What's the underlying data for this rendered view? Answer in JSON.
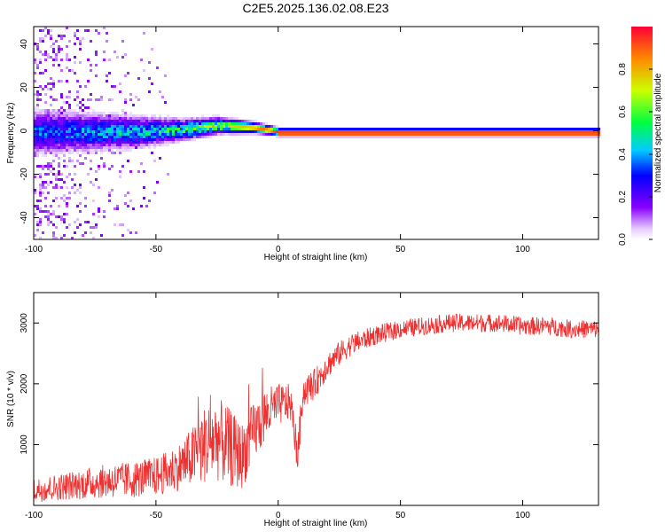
{
  "title": "C2E5.2025.136.02.08.E23",
  "chart_data": [
    {
      "type": "heatmap",
      "xlabel": "Height of straight line (km)",
      "ylabel": "Frequency (Hz)",
      "xlim": [
        -100,
        131
      ],
      "ylim": [
        -50,
        48
      ],
      "xticks": [
        "-100",
        "-50",
        "0",
        "50",
        "100"
      ],
      "xtick_values": [
        -100,
        -50,
        0,
        50,
        100
      ],
      "yticks": [
        "-40",
        "-20",
        "0",
        "20",
        "40"
      ],
      "ytick_values": [
        -40,
        -20,
        0,
        20,
        40
      ],
      "colorbar": {
        "label": "Normalized spectral amplitude",
        "range": [
          0,
          1
        ],
        "ticks": [
          "0.0",
          "0.2",
          "0.4",
          "0.6",
          "0.8"
        ],
        "tick_values": [
          0,
          0.2,
          0.4,
          0.6,
          0.8
        ]
      },
      "band": [
        {
          "x": -95,
          "center": 0,
          "halfwidth": 8,
          "amp": 0.35
        },
        {
          "x": -80,
          "center": 0,
          "halfwidth": 7,
          "amp": 0.4
        },
        {
          "x": -60,
          "center": 0,
          "halfwidth": 6,
          "amp": 0.45
        },
        {
          "x": -40,
          "center": 1,
          "halfwidth": 4,
          "amp": 0.55
        },
        {
          "x": -25,
          "center": 3,
          "halfwidth": 3,
          "amp": 0.7
        },
        {
          "x": -10,
          "center": 2,
          "halfwidth": 2,
          "amp": 0.85
        },
        {
          "x": 0,
          "center": 0,
          "halfwidth": 1.5,
          "amp": 0.95
        },
        {
          "x": 50,
          "center": 0,
          "halfwidth": 1.5,
          "amp": 0.95
        },
        {
          "x": 100,
          "center": 0,
          "halfwidth": 1.5,
          "amp": 0.95
        },
        {
          "x": 131,
          "center": 0,
          "halfwidth": 1.5,
          "amp": 0.95
        }
      ]
    },
    {
      "type": "line",
      "xlabel": "Height of straight line (km)",
      "ylabel": "SNR (10 * v/v)",
      "xlim": [
        -100,
        131
      ],
      "ylim": [
        0,
        3500
      ],
      "xticks": [
        "-100",
        "-50",
        "0",
        "50",
        "100"
      ],
      "xtick_values": [
        -100,
        -50,
        0,
        50,
        100
      ],
      "yticks": [
        "1000",
        "2000",
        "3000"
      ],
      "ytick_values": [
        1000,
        2000,
        3000
      ],
      "series_color": "#ee3030",
      "x": [
        -100,
        -90,
        -80,
        -70,
        -60,
        -50,
        -45,
        -40,
        -35,
        -30,
        -25,
        -20,
        -15,
        -10,
        -5,
        0,
        5,
        8,
        10,
        15,
        20,
        25,
        30,
        40,
        50,
        60,
        70,
        80,
        90,
        100,
        110,
        120,
        131
      ],
      "y": [
        250,
        300,
        350,
        400,
        420,
        480,
        550,
        650,
        800,
        1000,
        1100,
        950,
        800,
        1200,
        1500,
        1650,
        1700,
        800,
        1850,
        2000,
        2300,
        2500,
        2650,
        2800,
        2900,
        2950,
        3000,
        3000,
        3000,
        2950,
        2950,
        2900,
        2900
      ],
      "noise": [
        200,
        220,
        250,
        280,
        300,
        320,
        350,
        400,
        500,
        650,
        700,
        650,
        550,
        500,
        450,
        350,
        300,
        300,
        280,
        250,
        220,
        200,
        180,
        160,
        150,
        150,
        150,
        150,
        150,
        150,
        150,
        150,
        150
      ]
    }
  ]
}
